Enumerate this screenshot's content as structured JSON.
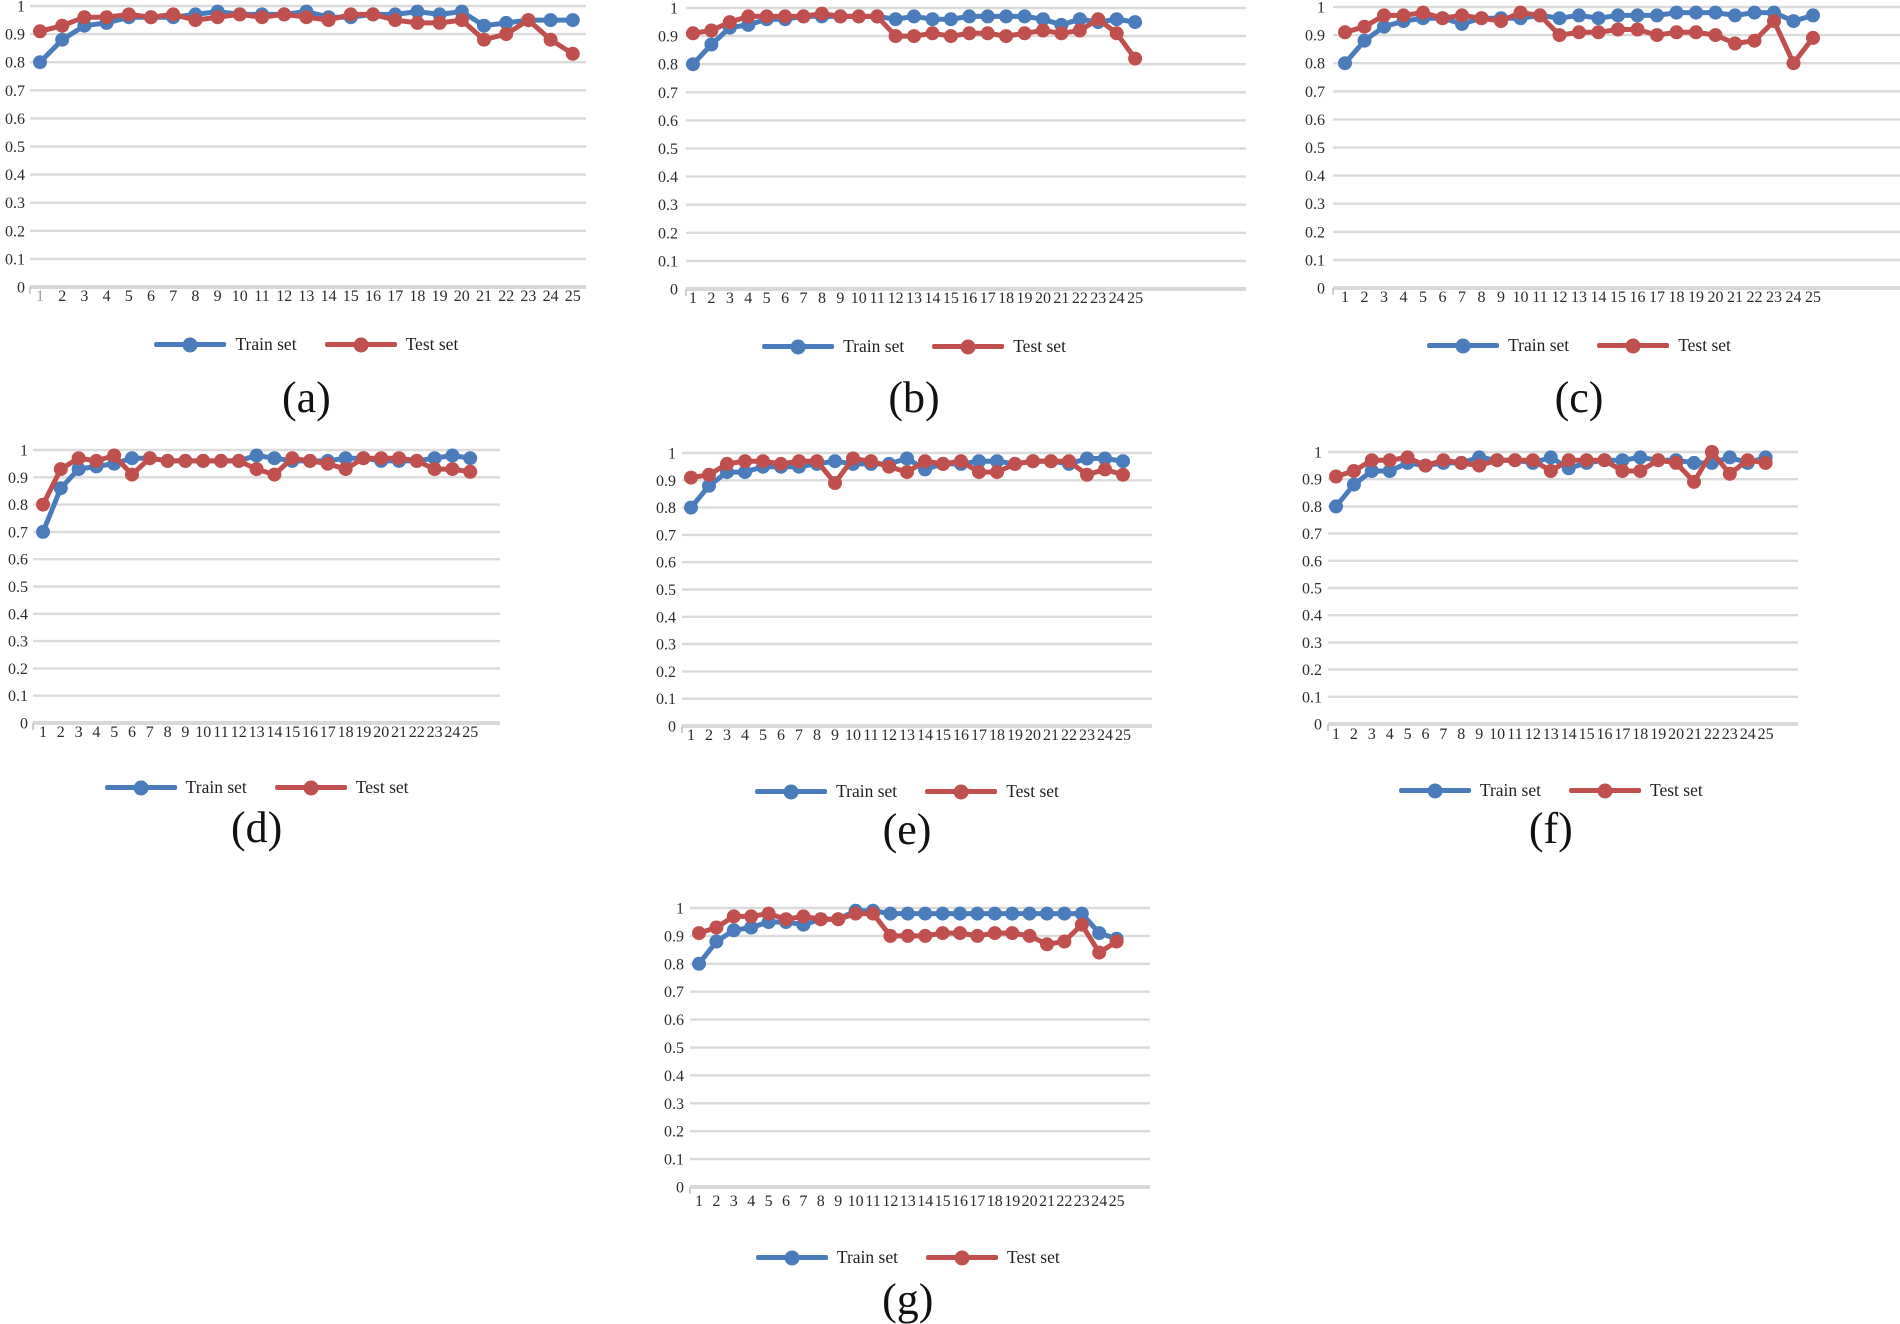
{
  "figure": {
    "description": "Seven line charts (a)-(g) of accuracy vs epoch 1-25 for train and test sets",
    "background": "#ffffff"
  },
  "chart_data": {
    "type": "line",
    "axis": {
      "x_ticks": [
        1,
        2,
        3,
        4,
        5,
        6,
        7,
        8,
        9,
        10,
        11,
        12,
        13,
        14,
        15,
        16,
        17,
        18,
        19,
        20,
        21,
        22,
        23,
        24,
        25
      ],
      "y_ticks": [
        "1",
        "0.9",
        "0.8",
        "0.7",
        "0.6",
        "0.5",
        "0.4",
        "0.3",
        "0.2",
        "0.1",
        "0"
      ],
      "y_min": 0,
      "y_max": 1,
      "grid": true
    },
    "colors": {
      "train": "#4A7CBB",
      "test": "#C0504D",
      "grid": "#DBDBDB",
      "baseline": "#D9D9D9",
      "axis_tick": "#BFBFBF",
      "text": "#2B2B2B",
      "muted_tick": "#9B9B9B"
    },
    "legend_position": "bottom-center",
    "charts": [
      {
        "id": "a",
        "caption": "(a)",
        "series": [
          {
            "key": "train",
            "name": "Train set",
            "values": [
              0.8,
              0.88,
              0.93,
              0.94,
              0.96,
              0.96,
              0.96,
              0.97,
              0.98,
              0.97,
              0.97,
              0.97,
              0.98,
              0.96,
              0.96,
              0.97,
              0.97,
              0.98,
              0.97,
              0.98,
              0.93,
              0.94,
              0.95,
              0.95,
              0.95
            ]
          },
          {
            "key": "test",
            "name": "Test set",
            "values": [
              0.91,
              0.93,
              0.96,
              0.96,
              0.97,
              0.96,
              0.97,
              0.95,
              0.96,
              0.97,
              0.96,
              0.97,
              0.96,
              0.95,
              0.97,
              0.97,
              0.95,
              0.94,
              0.94,
              0.95,
              0.88,
              0.9,
              0.95,
              0.88,
              0.83
            ]
          }
        ]
      },
      {
        "id": "b",
        "caption": "(b)",
        "series": [
          {
            "key": "train",
            "name": "Train set",
            "values": [
              0.8,
              0.87,
              0.93,
              0.94,
              0.96,
              0.96,
              0.97,
              0.97,
              0.97,
              0.97,
              0.97,
              0.96,
              0.97,
              0.96,
              0.96,
              0.97,
              0.97,
              0.97,
              0.97,
              0.96,
              0.94,
              0.96,
              0.95,
              0.96,
              0.95
            ]
          },
          {
            "key": "test",
            "name": "Test set",
            "values": [
              0.91,
              0.92,
              0.95,
              0.97,
              0.97,
              0.97,
              0.97,
              0.98,
              0.97,
              0.97,
              0.97,
              0.9,
              0.9,
              0.91,
              0.9,
              0.91,
              0.91,
              0.9,
              0.91,
              0.92,
              0.91,
              0.92,
              0.96,
              0.91,
              0.82
            ]
          }
        ]
      },
      {
        "id": "c",
        "caption": "(c)",
        "series": [
          {
            "key": "train",
            "name": "Train set",
            "values": [
              0.8,
              0.88,
              0.93,
              0.95,
              0.96,
              0.96,
              0.94,
              0.96,
              0.96,
              0.96,
              0.97,
              0.96,
              0.97,
              0.96,
              0.97,
              0.97,
              0.97,
              0.98,
              0.98,
              0.98,
              0.97,
              0.98,
              0.98,
              0.95,
              0.97
            ]
          },
          {
            "key": "test",
            "name": "Test set",
            "values": [
              0.91,
              0.93,
              0.97,
              0.97,
              0.98,
              0.96,
              0.97,
              0.96,
              0.95,
              0.98,
              0.97,
              0.9,
              0.91,
              0.91,
              0.92,
              0.92,
              0.9,
              0.91,
              0.91,
              0.9,
              0.87,
              0.88,
              0.95,
              0.8,
              0.89
            ]
          }
        ]
      },
      {
        "id": "d",
        "caption": "(d)",
        "series": [
          {
            "key": "train",
            "name": "Train set",
            "values": [
              0.7,
              0.86,
              0.93,
              0.94,
              0.95,
              0.97,
              0.97,
              0.96,
              0.96,
              0.96,
              0.96,
              0.96,
              0.98,
              0.97,
              0.96,
              0.96,
              0.96,
              0.97,
              0.97,
              0.96,
              0.96,
              0.96,
              0.97,
              0.98,
              0.97
            ]
          },
          {
            "key": "test",
            "name": "Test set",
            "values": [
              0.8,
              0.93,
              0.97,
              0.96,
              0.98,
              0.91,
              0.97,
              0.96,
              0.96,
              0.96,
              0.96,
              0.96,
              0.93,
              0.91,
              0.97,
              0.96,
              0.95,
              0.93,
              0.97,
              0.97,
              0.97,
              0.96,
              0.93,
              0.93,
              0.92
            ]
          }
        ]
      },
      {
        "id": "e",
        "caption": "(e)",
        "series": [
          {
            "key": "train",
            "name": "Train set",
            "values": [
              0.8,
              0.88,
              0.93,
              0.93,
              0.95,
              0.95,
              0.95,
              0.96,
              0.97,
              0.96,
              0.96,
              0.96,
              0.98,
              0.94,
              0.96,
              0.96,
              0.97,
              0.97,
              0.96,
              0.97,
              0.97,
              0.96,
              0.98,
              0.98,
              0.97
            ]
          },
          {
            "key": "test",
            "name": "Test set",
            "values": [
              0.91,
              0.92,
              0.96,
              0.97,
              0.97,
              0.96,
              0.97,
              0.97,
              0.89,
              0.98,
              0.97,
              0.95,
              0.93,
              0.97,
              0.96,
              0.97,
              0.93,
              0.93,
              0.96,
              0.97,
              0.97,
              0.97,
              0.92,
              0.94,
              0.92
            ]
          }
        ]
      },
      {
        "id": "f",
        "caption": "(f)",
        "series": [
          {
            "key": "train",
            "name": "Train set",
            "values": [
              0.8,
              0.88,
              0.93,
              0.93,
              0.96,
              0.95,
              0.96,
              0.96,
              0.98,
              0.97,
              0.97,
              0.96,
              0.98,
              0.94,
              0.96,
              0.97,
              0.97,
              0.98,
              0.97,
              0.97,
              0.96,
              0.96,
              0.98,
              0.96,
              0.98
            ]
          },
          {
            "key": "test",
            "name": "Test set",
            "values": [
              0.91,
              0.93,
              0.97,
              0.97,
              0.98,
              0.95,
              0.97,
              0.96,
              0.95,
              0.97,
              0.97,
              0.97,
              0.93,
              0.97,
              0.97,
              0.97,
              0.93,
              0.93,
              0.97,
              0.96,
              0.89,
              1.0,
              0.92,
              0.97,
              0.96
            ]
          }
        ]
      },
      {
        "id": "g",
        "caption": "(g)",
        "series": [
          {
            "key": "train",
            "name": "Train set",
            "values": [
              0.8,
              0.88,
              0.92,
              0.93,
              0.95,
              0.95,
              0.94,
              0.96,
              0.96,
              0.99,
              0.99,
              0.98,
              0.98,
              0.98,
              0.98,
              0.98,
              0.98,
              0.98,
              0.98,
              0.98,
              0.98,
              0.98,
              0.98,
              0.91,
              0.89
            ]
          },
          {
            "key": "test",
            "name": "Test set",
            "values": [
              0.91,
              0.93,
              0.97,
              0.97,
              0.98,
              0.96,
              0.97,
              0.96,
              0.96,
              0.98,
              0.98,
              0.9,
              0.9,
              0.9,
              0.91,
              0.91,
              0.9,
              0.91,
              0.91,
              0.9,
              0.87,
              0.88,
              0.94,
              0.84,
              0.88
            ]
          }
        ]
      }
    ]
  }
}
